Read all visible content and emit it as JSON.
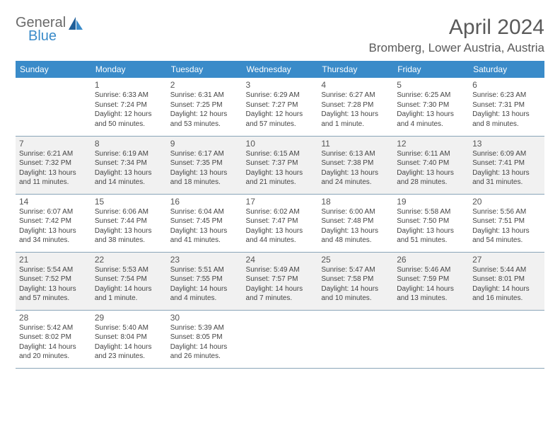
{
  "brand": {
    "general": "General",
    "blue": "Blue"
  },
  "title": "April 2024",
  "location": "Bromberg, Lower Austria, Austria",
  "colors": {
    "header_bg": "#3a8bc9",
    "header_text": "#ffffff",
    "active_row_bg": "#f1f1f1",
    "border": "#8aa5b8",
    "text": "#444444",
    "title_color": "#5a5a5a"
  },
  "days_of_week": [
    "Sunday",
    "Monday",
    "Tuesday",
    "Wednesday",
    "Thursday",
    "Friday",
    "Saturday"
  ],
  "weeks": [
    {
      "active": false,
      "days": [
        null,
        {
          "n": "1",
          "sr": "Sunrise: 6:33 AM",
          "ss": "Sunset: 7:24 PM",
          "dl1": "Daylight: 12 hours",
          "dl2": "and 50 minutes."
        },
        {
          "n": "2",
          "sr": "Sunrise: 6:31 AM",
          "ss": "Sunset: 7:25 PM",
          "dl1": "Daylight: 12 hours",
          "dl2": "and 53 minutes."
        },
        {
          "n": "3",
          "sr": "Sunrise: 6:29 AM",
          "ss": "Sunset: 7:27 PM",
          "dl1": "Daylight: 12 hours",
          "dl2": "and 57 minutes."
        },
        {
          "n": "4",
          "sr": "Sunrise: 6:27 AM",
          "ss": "Sunset: 7:28 PM",
          "dl1": "Daylight: 13 hours",
          "dl2": "and 1 minute."
        },
        {
          "n": "5",
          "sr": "Sunrise: 6:25 AM",
          "ss": "Sunset: 7:30 PM",
          "dl1": "Daylight: 13 hours",
          "dl2": "and 4 minutes."
        },
        {
          "n": "6",
          "sr": "Sunrise: 6:23 AM",
          "ss": "Sunset: 7:31 PM",
          "dl1": "Daylight: 13 hours",
          "dl2": "and 8 minutes."
        }
      ]
    },
    {
      "active": true,
      "days": [
        {
          "n": "7",
          "sr": "Sunrise: 6:21 AM",
          "ss": "Sunset: 7:32 PM",
          "dl1": "Daylight: 13 hours",
          "dl2": "and 11 minutes."
        },
        {
          "n": "8",
          "sr": "Sunrise: 6:19 AM",
          "ss": "Sunset: 7:34 PM",
          "dl1": "Daylight: 13 hours",
          "dl2": "and 14 minutes."
        },
        {
          "n": "9",
          "sr": "Sunrise: 6:17 AM",
          "ss": "Sunset: 7:35 PM",
          "dl1": "Daylight: 13 hours",
          "dl2": "and 18 minutes."
        },
        {
          "n": "10",
          "sr": "Sunrise: 6:15 AM",
          "ss": "Sunset: 7:37 PM",
          "dl1": "Daylight: 13 hours",
          "dl2": "and 21 minutes."
        },
        {
          "n": "11",
          "sr": "Sunrise: 6:13 AM",
          "ss": "Sunset: 7:38 PM",
          "dl1": "Daylight: 13 hours",
          "dl2": "and 24 minutes."
        },
        {
          "n": "12",
          "sr": "Sunrise: 6:11 AM",
          "ss": "Sunset: 7:40 PM",
          "dl1": "Daylight: 13 hours",
          "dl2": "and 28 minutes."
        },
        {
          "n": "13",
          "sr": "Sunrise: 6:09 AM",
          "ss": "Sunset: 7:41 PM",
          "dl1": "Daylight: 13 hours",
          "dl2": "and 31 minutes."
        }
      ]
    },
    {
      "active": false,
      "days": [
        {
          "n": "14",
          "sr": "Sunrise: 6:07 AM",
          "ss": "Sunset: 7:42 PM",
          "dl1": "Daylight: 13 hours",
          "dl2": "and 34 minutes."
        },
        {
          "n": "15",
          "sr": "Sunrise: 6:06 AM",
          "ss": "Sunset: 7:44 PM",
          "dl1": "Daylight: 13 hours",
          "dl2": "and 38 minutes."
        },
        {
          "n": "16",
          "sr": "Sunrise: 6:04 AM",
          "ss": "Sunset: 7:45 PM",
          "dl1": "Daylight: 13 hours",
          "dl2": "and 41 minutes."
        },
        {
          "n": "17",
          "sr": "Sunrise: 6:02 AM",
          "ss": "Sunset: 7:47 PM",
          "dl1": "Daylight: 13 hours",
          "dl2": "and 44 minutes."
        },
        {
          "n": "18",
          "sr": "Sunrise: 6:00 AM",
          "ss": "Sunset: 7:48 PM",
          "dl1": "Daylight: 13 hours",
          "dl2": "and 48 minutes."
        },
        {
          "n": "19",
          "sr": "Sunrise: 5:58 AM",
          "ss": "Sunset: 7:50 PM",
          "dl1": "Daylight: 13 hours",
          "dl2": "and 51 minutes."
        },
        {
          "n": "20",
          "sr": "Sunrise: 5:56 AM",
          "ss": "Sunset: 7:51 PM",
          "dl1": "Daylight: 13 hours",
          "dl2": "and 54 minutes."
        }
      ]
    },
    {
      "active": true,
      "days": [
        {
          "n": "21",
          "sr": "Sunrise: 5:54 AM",
          "ss": "Sunset: 7:52 PM",
          "dl1": "Daylight: 13 hours",
          "dl2": "and 57 minutes."
        },
        {
          "n": "22",
          "sr": "Sunrise: 5:53 AM",
          "ss": "Sunset: 7:54 PM",
          "dl1": "Daylight: 14 hours",
          "dl2": "and 1 minute."
        },
        {
          "n": "23",
          "sr": "Sunrise: 5:51 AM",
          "ss": "Sunset: 7:55 PM",
          "dl1": "Daylight: 14 hours",
          "dl2": "and 4 minutes."
        },
        {
          "n": "24",
          "sr": "Sunrise: 5:49 AM",
          "ss": "Sunset: 7:57 PM",
          "dl1": "Daylight: 14 hours",
          "dl2": "and 7 minutes."
        },
        {
          "n": "25",
          "sr": "Sunrise: 5:47 AM",
          "ss": "Sunset: 7:58 PM",
          "dl1": "Daylight: 14 hours",
          "dl2": "and 10 minutes."
        },
        {
          "n": "26",
          "sr": "Sunrise: 5:46 AM",
          "ss": "Sunset: 7:59 PM",
          "dl1": "Daylight: 14 hours",
          "dl2": "and 13 minutes."
        },
        {
          "n": "27",
          "sr": "Sunrise: 5:44 AM",
          "ss": "Sunset: 8:01 PM",
          "dl1": "Daylight: 14 hours",
          "dl2": "and 16 minutes."
        }
      ]
    },
    {
      "active": false,
      "days": [
        {
          "n": "28",
          "sr": "Sunrise: 5:42 AM",
          "ss": "Sunset: 8:02 PM",
          "dl1": "Daylight: 14 hours",
          "dl2": "and 20 minutes."
        },
        {
          "n": "29",
          "sr": "Sunrise: 5:40 AM",
          "ss": "Sunset: 8:04 PM",
          "dl1": "Daylight: 14 hours",
          "dl2": "and 23 minutes."
        },
        {
          "n": "30",
          "sr": "Sunrise: 5:39 AM",
          "ss": "Sunset: 8:05 PM",
          "dl1": "Daylight: 14 hours",
          "dl2": "and 26 minutes."
        },
        null,
        null,
        null,
        null
      ]
    }
  ]
}
